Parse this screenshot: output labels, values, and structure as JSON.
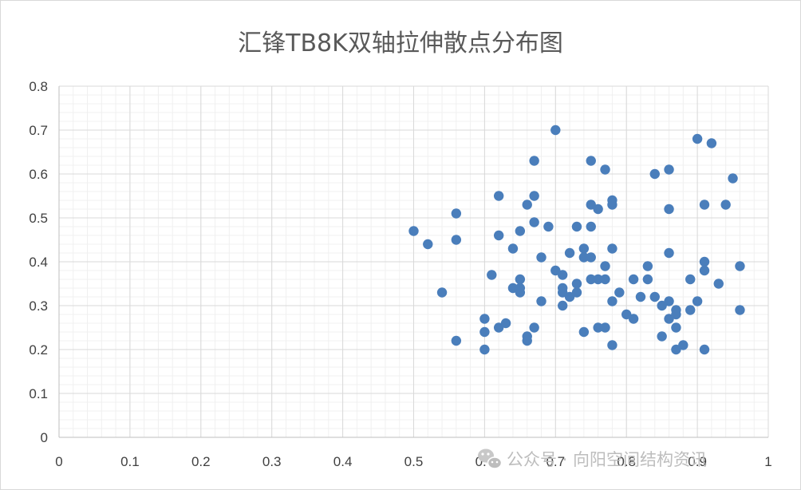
{
  "chart_data": {
    "type": "scatter",
    "title": "汇锋TB8K双轴拉伸散点分布图",
    "xlabel": "",
    "ylabel": "",
    "xlim": [
      0,
      1
    ],
    "ylim": [
      0,
      0.8
    ],
    "x_ticks": [
      "0",
      "0.1",
      "0.2",
      "0.3",
      "0.4",
      "0.5",
      "0.6",
      "0.7",
      "0.8",
      "0.9",
      "1"
    ],
    "y_ticks": [
      "0",
      "0.1",
      "0.2",
      "0.3",
      "0.4",
      "0.5",
      "0.6",
      "0.7",
      "0.8"
    ],
    "grid": "major and minor gridlines",
    "legend": "none",
    "marker_color": "#4a7ebb",
    "points": [
      {
        "x": 0.5,
        "y": 0.47
      },
      {
        "x": 0.52,
        "y": 0.44
      },
      {
        "x": 0.54,
        "y": 0.33
      },
      {
        "x": 0.56,
        "y": 0.51
      },
      {
        "x": 0.56,
        "y": 0.45
      },
      {
        "x": 0.56,
        "y": 0.22
      },
      {
        "x": 0.6,
        "y": 0.27
      },
      {
        "x": 0.6,
        "y": 0.24
      },
      {
        "x": 0.6,
        "y": 0.2
      },
      {
        "x": 0.61,
        "y": 0.37
      },
      {
        "x": 0.62,
        "y": 0.55
      },
      {
        "x": 0.62,
        "y": 0.46
      },
      {
        "x": 0.62,
        "y": 0.25
      },
      {
        "x": 0.63,
        "y": 0.26
      },
      {
        "x": 0.64,
        "y": 0.43
      },
      {
        "x": 0.64,
        "y": 0.34
      },
      {
        "x": 0.65,
        "y": 0.47
      },
      {
        "x": 0.65,
        "y": 0.36
      },
      {
        "x": 0.65,
        "y": 0.34
      },
      {
        "x": 0.65,
        "y": 0.33
      },
      {
        "x": 0.66,
        "y": 0.53
      },
      {
        "x": 0.66,
        "y": 0.23
      },
      {
        "x": 0.66,
        "y": 0.22
      },
      {
        "x": 0.67,
        "y": 0.63
      },
      {
        "x": 0.67,
        "y": 0.55
      },
      {
        "x": 0.67,
        "y": 0.49
      },
      {
        "x": 0.67,
        "y": 0.25
      },
      {
        "x": 0.68,
        "y": 0.41
      },
      {
        "x": 0.68,
        "y": 0.31
      },
      {
        "x": 0.69,
        "y": 0.48
      },
      {
        "x": 0.7,
        "y": 0.7
      },
      {
        "x": 0.7,
        "y": 0.38
      },
      {
        "x": 0.71,
        "y": 0.37
      },
      {
        "x": 0.71,
        "y": 0.34
      },
      {
        "x": 0.71,
        "y": 0.33
      },
      {
        "x": 0.71,
        "y": 0.3
      },
      {
        "x": 0.72,
        "y": 0.42
      },
      {
        "x": 0.72,
        "y": 0.32
      },
      {
        "x": 0.73,
        "y": 0.48
      },
      {
        "x": 0.73,
        "y": 0.35
      },
      {
        "x": 0.73,
        "y": 0.33
      },
      {
        "x": 0.74,
        "y": 0.43
      },
      {
        "x": 0.74,
        "y": 0.41
      },
      {
        "x": 0.74,
        "y": 0.24
      },
      {
        "x": 0.75,
        "y": 0.63
      },
      {
        "x": 0.75,
        "y": 0.53
      },
      {
        "x": 0.75,
        "y": 0.48
      },
      {
        "x": 0.75,
        "y": 0.41
      },
      {
        "x": 0.75,
        "y": 0.36
      },
      {
        "x": 0.76,
        "y": 0.52
      },
      {
        "x": 0.76,
        "y": 0.36
      },
      {
        "x": 0.76,
        "y": 0.25
      },
      {
        "x": 0.77,
        "y": 0.61
      },
      {
        "x": 0.77,
        "y": 0.39
      },
      {
        "x": 0.77,
        "y": 0.36
      },
      {
        "x": 0.77,
        "y": 0.25
      },
      {
        "x": 0.78,
        "y": 0.54
      },
      {
        "x": 0.78,
        "y": 0.53
      },
      {
        "x": 0.78,
        "y": 0.43
      },
      {
        "x": 0.78,
        "y": 0.31
      },
      {
        "x": 0.78,
        "y": 0.21
      },
      {
        "x": 0.79,
        "y": 0.33
      },
      {
        "x": 0.8,
        "y": 0.28
      },
      {
        "x": 0.81,
        "y": 0.36
      },
      {
        "x": 0.81,
        "y": 0.27
      },
      {
        "x": 0.82,
        "y": 0.32
      },
      {
        "x": 0.83,
        "y": 0.39
      },
      {
        "x": 0.83,
        "y": 0.36
      },
      {
        "x": 0.84,
        "y": 0.6
      },
      {
        "x": 0.84,
        "y": 0.32
      },
      {
        "x": 0.85,
        "y": 0.3
      },
      {
        "x": 0.85,
        "y": 0.23
      },
      {
        "x": 0.86,
        "y": 0.61
      },
      {
        "x": 0.86,
        "y": 0.52
      },
      {
        "x": 0.86,
        "y": 0.42
      },
      {
        "x": 0.86,
        "y": 0.31
      },
      {
        "x": 0.86,
        "y": 0.27
      },
      {
        "x": 0.87,
        "y": 0.29
      },
      {
        "x": 0.87,
        "y": 0.28
      },
      {
        "x": 0.87,
        "y": 0.25
      },
      {
        "x": 0.87,
        "y": 0.2
      },
      {
        "x": 0.88,
        "y": 0.21
      },
      {
        "x": 0.89,
        "y": 0.36
      },
      {
        "x": 0.89,
        "y": 0.29
      },
      {
        "x": 0.9,
        "y": 0.68
      },
      {
        "x": 0.9,
        "y": 0.31
      },
      {
        "x": 0.91,
        "y": 0.53
      },
      {
        "x": 0.91,
        "y": 0.4
      },
      {
        "x": 0.91,
        "y": 0.38
      },
      {
        "x": 0.91,
        "y": 0.2
      },
      {
        "x": 0.92,
        "y": 0.67
      },
      {
        "x": 0.93,
        "y": 0.35
      },
      {
        "x": 0.94,
        "y": 0.53
      },
      {
        "x": 0.95,
        "y": 0.59
      },
      {
        "x": 0.96,
        "y": 0.39
      },
      {
        "x": 0.96,
        "y": 0.29
      }
    ]
  },
  "watermark": {
    "icon": "wechat-icon",
    "text": "公众号 · 向阳空间结构资讯"
  }
}
